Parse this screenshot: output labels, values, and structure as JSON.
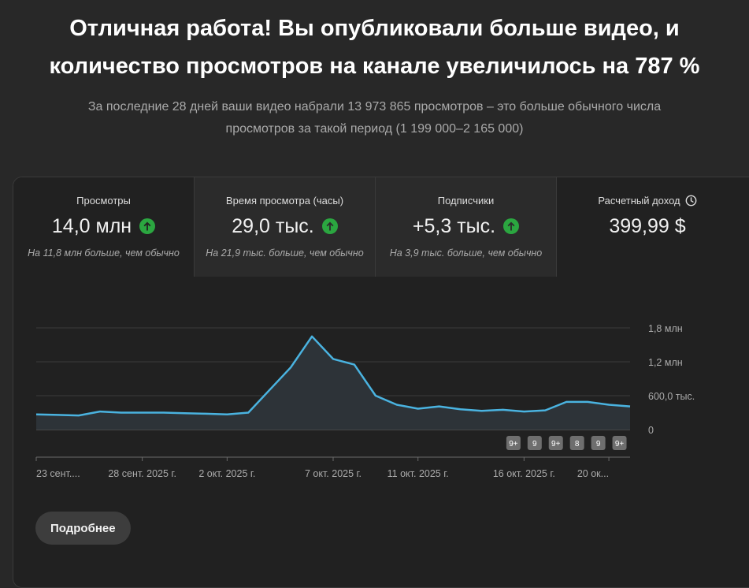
{
  "headline": {
    "line1": "Отличная работа! Вы опубликовали больше видео, и",
    "line2": "количество просмотров на канале увеличилось на 787 %"
  },
  "subtext": {
    "line1": "За последние 28 дней ваши видео набрали 13 973 865 просмотров – это больше обычного числа",
    "line2": "просмотров за такой период (1 199 000–2 165 000)"
  },
  "metrics": [
    {
      "label": "Просмотры",
      "value": "14,0 млн",
      "trend": "up",
      "note": "На 11,8 млн больше, чем обычно"
    },
    {
      "label": "Время просмотра (часы)",
      "value": "29,0 тыс.",
      "trend": "up",
      "note": "На 21,9 тыс. больше, чем обычно"
    },
    {
      "label": "Подписчики",
      "value": "+5,3 тыс.",
      "trend": "up",
      "note": "На 3,9 тыс. больше, чем обычно"
    },
    {
      "label": "Расчетный доход",
      "value": "399,99 $",
      "icon": "clock-icon"
    }
  ],
  "colors": {
    "line": "#4ab3e0",
    "up_arrow": "#2ba640",
    "background": "#282828"
  },
  "chart_data": {
    "type": "area",
    "series": [
      {
        "values": [
          270000,
          260000,
          250000,
          320000,
          300000,
          300000,
          300000,
          290000,
          280000,
          270000,
          300000,
          700000,
          1100000,
          1650000,
          1250000,
          1150000,
          600000,
          440000,
          370000,
          410000,
          360000,
          330000,
          350000,
          320000,
          340000,
          490000,
          490000,
          440000,
          410000
        ]
      }
    ],
    "x_tick_labels": [
      "23 сент....",
      "28 сент. 2025 г.",
      "2 окт. 2025 г.",
      "7 окт. 2025 г.",
      "11 окт. 2025 г.",
      "16 окт. 2025 г.",
      "20 ок..."
    ],
    "x_tick_index": [
      0,
      5,
      9,
      14,
      18,
      23,
      27
    ],
    "y_tick_labels": [
      "1,8 млн",
      "1,2 млн",
      "600,0 тыс.",
      "0"
    ],
    "y_ticks": [
      1800000,
      1200000,
      600000,
      0
    ],
    "ylim": [
      0,
      1800000
    ],
    "grid": true,
    "markers": [
      {
        "label": "9+",
        "index": 22.5
      },
      {
        "label": "9",
        "index": 23.5
      },
      {
        "label": "9+",
        "index": 24.5
      },
      {
        "label": "8",
        "index": 25.5
      },
      {
        "label": "9",
        "index": 26.5
      },
      {
        "label": "9+",
        "index": 27.5
      }
    ]
  },
  "more_button": {
    "label": "Подробнее"
  }
}
